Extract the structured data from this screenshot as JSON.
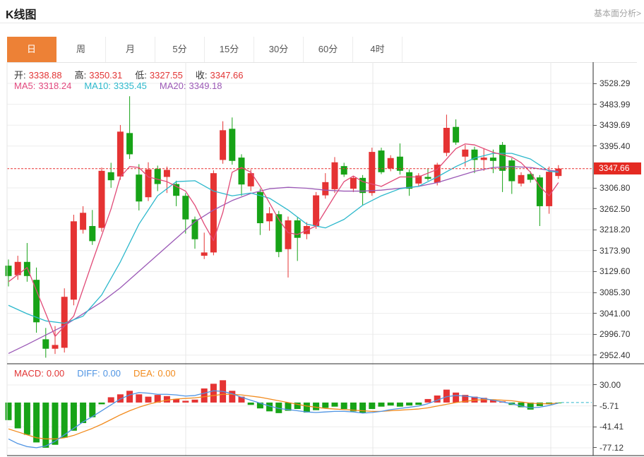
{
  "header": {
    "title": "K线图",
    "link": "基本面分析>"
  },
  "tabs": {
    "items": [
      "日",
      "周",
      "月",
      "5分",
      "15分",
      "30分",
      "60分",
      "4时"
    ],
    "selected_index": 0
  },
  "ohlc": {
    "items": [
      {
        "label": "开:",
        "value": "3338.88"
      },
      {
        "label": "高:",
        "value": "3350.31"
      },
      {
        "label": "低:",
        "value": "3327.55"
      },
      {
        "label": "收:",
        "value": "3347.66"
      }
    ],
    "label_color": "#333333",
    "value_color": "#e23535"
  },
  "ma_header": {
    "items": [
      {
        "label": "MA5:",
        "value": "3318.24",
        "color": "#e2487e"
      },
      {
        "label": "MA10:",
        "value": "3335.45",
        "color": "#2cb8cc"
      },
      {
        "label": "MA20:",
        "value": "3349.18",
        "color": "#9b59b6"
      }
    ]
  },
  "macd_header": {
    "items": [
      {
        "label": "MACD:",
        "value": "0.00",
        "color": "#e23535"
      },
      {
        "label": "DIFF:",
        "value": "0.00",
        "color": "#4f94e3"
      },
      {
        "label": "DEA:",
        "value": "0.00",
        "color": "#f28b1d"
      }
    ]
  },
  "colors": {
    "up": "#e53333",
    "down": "#17a317",
    "ma5": "#e14a77",
    "ma10": "#2cb8cc",
    "ma20": "#9b59b6",
    "diff": "#4f94e3",
    "dea": "#f28b1d",
    "price_line": "#e83232",
    "price_tag_bg": "#e42a22",
    "grid": "#ededed",
    "vgrid": "#e7e7e7",
    "axis": "#2b2b2b",
    "plot_border": "#e5e5e5",
    "tab_selected_bg": "#ed8136"
  },
  "chart_data": [
    {
      "type": "candlestick",
      "title": "K线图 日K",
      "period_selected": "日",
      "current_price": 3347.66,
      "y_axis_labels": [
        "3528.29",
        "3483.99",
        "3439.69",
        "3395.40",
        "3347.66",
        "3306.80",
        "3262.50",
        "3218.20",
        "3173.90",
        "3129.60",
        "3085.30",
        "3041.00",
        "2996.70",
        "2952.40"
      ],
      "gridline_values": [
        3528.29,
        3483.99,
        3439.69,
        3395.4,
        3306.8,
        3262.5,
        3218.2,
        3173.9,
        3129.6,
        3085.3,
        3041.0,
        2996.7,
        2952.4
      ],
      "ylim": [
        2935,
        3545
      ],
      "legend": [
        "MA5",
        "MA10",
        "MA20"
      ],
      "candles_ohlc": [
        [
          3142,
          3155,
          3098,
          3120
        ],
        [
          3122,
          3163,
          3112,
          3150
        ],
        [
          3150,
          3190,
          3108,
          3120
        ],
        [
          3112,
          3138,
          3000,
          3022
        ],
        [
          2986,
          3010,
          2947,
          2966
        ],
        [
          2966,
          3014,
          2955,
          2974
        ],
        [
          2968,
          3094,
          2958,
          3076
        ],
        [
          3070,
          3250,
          3058,
          3236
        ],
        [
          3218,
          3268,
          3210,
          3254
        ],
        [
          3226,
          3260,
          3186,
          3194
        ],
        [
          3222,
          3350,
          3214,
          3343
        ],
        [
          3340,
          3360,
          3307,
          3323
        ],
        [
          3331,
          3440,
          3324,
          3426
        ],
        [
          3423,
          3501,
          3368,
          3378
        ],
        [
          3335,
          3357,
          3259,
          3278
        ],
        [
          3287,
          3361,
          3279,
          3346
        ],
        [
          3347,
          3354,
          3300,
          3315
        ],
        [
          3330,
          3352,
          3296,
          3345
        ],
        [
          3315,
          3322,
          3268,
          3290
        ],
        [
          3290,
          3296,
          3210,
          3240
        ],
        [
          3240,
          3246,
          3178,
          3198
        ],
        [
          3163,
          3212,
          3156,
          3170
        ],
        [
          3170,
          3344,
          3164,
          3338
        ],
        [
          3366,
          3448,
          3358,
          3429
        ],
        [
          3432,
          3456,
          3356,
          3364
        ],
        [
          3371,
          3378,
          3290,
          3314
        ],
        [
          3310,
          3346,
          3300,
          3338
        ],
        [
          3298,
          3305,
          3207,
          3232
        ],
        [
          3236,
          3266,
          3216,
          3253
        ],
        [
          3251,
          3258,
          3160,
          3171
        ],
        [
          3177,
          3246,
          3117,
          3238
        ],
        [
          3238,
          3244,
          3152,
          3201
        ],
        [
          3209,
          3234,
          3198,
          3226
        ],
        [
          3226,
          3298,
          3220,
          3291
        ],
        [
          3291,
          3338,
          3284,
          3319
        ],
        [
          3304,
          3372,
          3296,
          3361
        ],
        [
          3353,
          3360,
          3330,
          3335
        ],
        [
          3305,
          3332,
          3298,
          3328
        ],
        [
          3328,
          3334,
          3270,
          3296
        ],
        [
          3296,
          3392,
          3290,
          3383
        ],
        [
          3386,
          3392,
          3336,
          3340
        ],
        [
          3348,
          3376,
          3342,
          3370
        ],
        [
          3373,
          3401,
          3335,
          3343
        ],
        [
          3340,
          3346,
          3290,
          3305
        ],
        [
          3316,
          3338,
          3310,
          3333
        ],
        [
          3330,
          3348,
          3322,
          3326
        ],
        [
          3318,
          3360,
          3312,
          3356
        ],
        [
          3381,
          3462,
          3374,
          3434
        ],
        [
          3436,
          3452,
          3398,
          3403
        ],
        [
          3373,
          3398,
          3352,
          3388
        ],
        [
          3388,
          3394,
          3338,
          3366
        ],
        [
          3366,
          3391,
          3343,
          3371
        ],
        [
          3371,
          3388,
          3338,
          3364
        ],
        [
          3398,
          3404,
          3298,
          3343
        ],
        [
          3365,
          3370,
          3294,
          3321
        ],
        [
          3316,
          3340,
          3310,
          3334
        ],
        [
          3336,
          3342,
          3318,
          3324
        ],
        [
          3329,
          3334,
          3226,
          3268
        ],
        [
          3268,
          3352,
          3252,
          3341
        ],
        [
          3332,
          3355,
          3326,
          3347.66
        ]
      ],
      "ma5_points": [
        [
          0,
          3108
        ],
        [
          2,
          3138
        ],
        [
          5,
          2992
        ],
        [
          7,
          3035
        ],
        [
          9,
          3150
        ],
        [
          11,
          3262
        ],
        [
          12,
          3330
        ],
        [
          13,
          3352
        ],
        [
          14,
          3350
        ],
        [
          15,
          3330
        ],
        [
          17,
          3320
        ],
        [
          19,
          3300
        ],
        [
          20,
          3270
        ],
        [
          21,
          3230
        ],
        [
          22,
          3195
        ],
        [
          23,
          3255
        ],
        [
          24,
          3340
        ],
        [
          25,
          3350
        ],
        [
          26,
          3340
        ],
        [
          27,
          3310
        ],
        [
          29,
          3240
        ],
        [
          30,
          3212
        ],
        [
          31,
          3208
        ],
        [
          33,
          3226
        ],
        [
          35,
          3290
        ],
        [
          36,
          3320
        ],
        [
          37,
          3332
        ],
        [
          38,
          3320
        ],
        [
          40,
          3310
        ],
        [
          42,
          3330
        ],
        [
          44,
          3330
        ],
        [
          46,
          3346
        ],
        [
          48,
          3390
        ],
        [
          49,
          3400
        ],
        [
          50,
          3398
        ],
        [
          52,
          3382
        ],
        [
          54,
          3372
        ],
        [
          55,
          3360
        ],
        [
          56,
          3340
        ],
        [
          57,
          3310
        ],
        [
          58,
          3290
        ],
        [
          59,
          3318
        ]
      ],
      "ma10_points": [
        [
          0,
          3058
        ],
        [
          2,
          3040
        ],
        [
          4,
          3025
        ],
        [
          6,
          3020
        ],
        [
          8,
          3035
        ],
        [
          10,
          3080
        ],
        [
          12,
          3150
        ],
        [
          14,
          3230
        ],
        [
          16,
          3290
        ],
        [
          18,
          3320
        ],
        [
          20,
          3322
        ],
        [
          22,
          3300
        ],
        [
          24,
          3290
        ],
        [
          26,
          3296
        ],
        [
          28,
          3285
        ],
        [
          30,
          3260
        ],
        [
          32,
          3230
        ],
        [
          34,
          3222
        ],
        [
          36,
          3240
        ],
        [
          38,
          3270
        ],
        [
          40,
          3290
        ],
        [
          42,
          3305
        ],
        [
          44,
          3310
        ],
        [
          46,
          3330
        ],
        [
          48,
          3352
        ],
        [
          50,
          3370
        ],
        [
          52,
          3380
        ],
        [
          54,
          3380
        ],
        [
          56,
          3368
        ],
        [
          57,
          3355
        ],
        [
          58,
          3342
        ],
        [
          59,
          3340
        ]
      ],
      "ma20_points": [
        [
          0,
          2956
        ],
        [
          2,
          2975
        ],
        [
          4,
          2995
        ],
        [
          6,
          3015
        ],
        [
          8,
          3040
        ],
        [
          10,
          3065
        ],
        [
          12,
          3095
        ],
        [
          14,
          3130
        ],
        [
          16,
          3165
        ],
        [
          18,
          3200
        ],
        [
          20,
          3235
        ],
        [
          22,
          3260
        ],
        [
          24,
          3280
        ],
        [
          26,
          3295
        ],
        [
          28,
          3305
        ],
        [
          30,
          3308
        ],
        [
          32,
          3306
        ],
        [
          34,
          3302
        ],
        [
          36,
          3300
        ],
        [
          38,
          3300
        ],
        [
          40,
          3302
        ],
        [
          42,
          3306
        ],
        [
          44,
          3310
        ],
        [
          46,
          3318
        ],
        [
          48,
          3330
        ],
        [
          50,
          3342
        ],
        [
          52,
          3350
        ],
        [
          54,
          3352
        ],
        [
          56,
          3350
        ],
        [
          58,
          3344
        ],
        [
          59,
          3342
        ]
      ]
    },
    {
      "type": "bar",
      "title": "MACD",
      "y_axis_labels": [
        "30.00",
        "-5.71",
        "-41.41",
        "-77.12"
      ],
      "gridline_values": [
        30.0,
        -5.71,
        -41.41,
        -77.12
      ],
      "histogram": [
        -30,
        -44,
        -55,
        -68,
        -77,
        -72,
        -60,
        -48,
        -35,
        -25,
        -3,
        9,
        14,
        20,
        14,
        10,
        13,
        11,
        6,
        3,
        5,
        24,
        32,
        38,
        20,
        10,
        -4,
        -10,
        -15,
        -18,
        -14,
        -11,
        -17,
        -13,
        -9,
        -7,
        -11,
        -15,
        -18,
        -11,
        -7,
        -5,
        -7,
        -5,
        -4,
        6,
        12,
        22,
        17,
        13,
        10,
        8,
        5,
        2,
        -4,
        -8,
        -12,
        -6,
        -3,
        -1
      ],
      "diff_line": [
        -62,
        -70,
        -75,
        -77,
        -74,
        -66,
        -55,
        -44,
        -33,
        -24,
        -14,
        -4,
        6,
        13,
        17,
        16,
        14,
        14,
        13,
        11,
        12,
        16,
        20,
        19,
        15,
        9,
        4,
        -1,
        -6,
        -10,
        -12,
        -14,
        -16,
        -17,
        -16,
        -15,
        -15,
        -16,
        -18,
        -17,
        -15,
        -12,
        -10,
        -8,
        -6,
        -2,
        4,
        10,
        12,
        11,
        9,
        7,
        4,
        1,
        -2,
        -6,
        -9,
        -8,
        -5,
        -1
      ],
      "dea_line": [
        -45,
        -50,
        -55,
        -60,
        -62,
        -62,
        -60,
        -56,
        -50,
        -44,
        -37,
        -29,
        -21,
        -14,
        -8,
        -3,
        1,
        4,
        6,
        7,
        8,
        10,
        12,
        14,
        14,
        13,
        11,
        9,
        6,
        3,
        0,
        -3,
        -6,
        -8,
        -10,
        -11,
        -12,
        -13,
        -14,
        -15,
        -15,
        -14,
        -13,
        -12,
        -11,
        -9,
        -6,
        -3,
        0,
        2,
        4,
        5,
        5,
        4,
        3,
        1,
        -1,
        -2,
        -2,
        -1
      ]
    }
  ]
}
